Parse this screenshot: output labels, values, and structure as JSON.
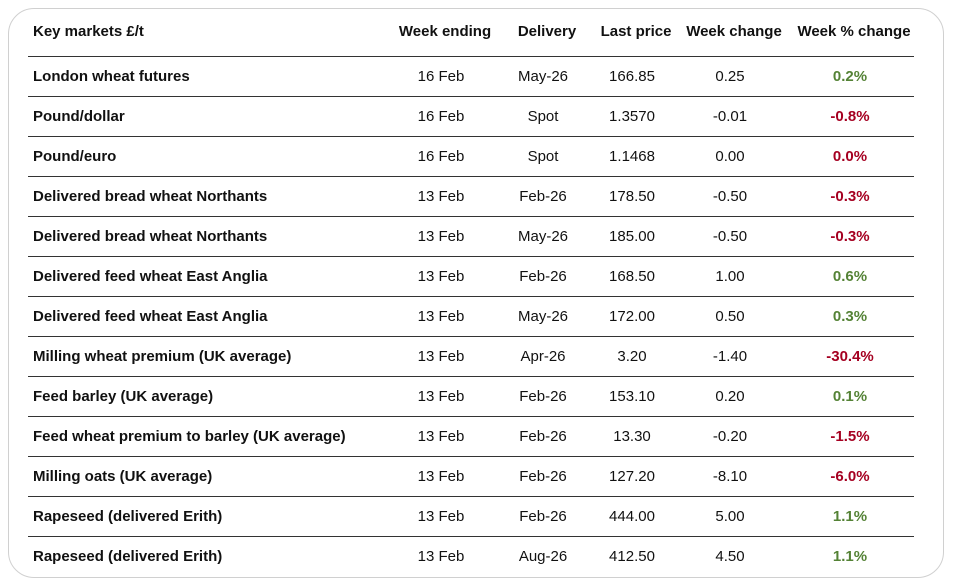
{
  "table": {
    "header": [
      "Key markets £/t",
      "Week ending",
      "Delivery",
      "Last price",
      "Week change",
      "Week % change"
    ],
    "rows": [
      {
        "cells": [
          "London wheat futures",
          "16 Feb",
          "May-26",
          "166.85",
          "0.25",
          "0.2%"
        ],
        "pct_color": "#548235"
      },
      {
        "cells": [
          "Pound/dollar",
          "16 Feb",
          "Spot",
          "1.3570",
          "-0.01",
          "-0.8%"
        ],
        "pct_color": "#a50021"
      },
      {
        "cells": [
          "Pound/euro",
          "16 Feb",
          "Spot",
          "1.1468",
          "0.00",
          "0.0%"
        ],
        "pct_color": "#a50021"
      },
      {
        "cells": [
          "Delivered bread wheat Northants",
          "13 Feb",
          "Feb-26",
          "178.50",
          "-0.50",
          "-0.3%"
        ],
        "pct_color": "#a50021"
      },
      {
        "cells": [
          "Delivered bread wheat Northants",
          "13 Feb",
          "May-26",
          "185.00",
          "-0.50",
          "-0.3%"
        ],
        "pct_color": "#a50021"
      },
      {
        "cells": [
          "Delivered feed wheat East Anglia",
          "13 Feb",
          "Feb-26",
          "168.50",
          "1.00",
          "0.6%"
        ],
        "pct_color": "#548235"
      },
      {
        "cells": [
          "Delivered feed wheat East Anglia",
          "13 Feb",
          "May-26",
          "172.00",
          "0.50",
          "0.3%"
        ],
        "pct_color": "#548235"
      },
      {
        "cells": [
          "Milling wheat premium (UK average)",
          "13 Feb",
          "Apr-26",
          "3.20",
          "-1.40",
          "-30.4%"
        ],
        "pct_color": "#a50021"
      },
      {
        "cells": [
          "Feed barley (UK average)",
          "13 Feb",
          "Feb-26",
          "153.10",
          "0.20",
          "0.1%"
        ],
        "pct_color": "#548235"
      },
      {
        "cells": [
          "Feed wheat premium to barley (UK average)",
          "13 Feb",
          "Feb-26",
          "13.30",
          "-0.20",
          "-1.5%"
        ],
        "pct_color": "#a50021"
      },
      {
        "cells": [
          "Milling oats (UK average)",
          "13 Feb",
          "Feb-26",
          "127.20",
          "-8.10",
          "-6.0%"
        ],
        "pct_color": "#a50021"
      },
      {
        "cells": [
          "Rapeseed (delivered Erith)",
          "13 Feb",
          "Feb-26",
          "444.00",
          "5.00",
          "1.1%"
        ],
        "pct_color": "#548235"
      },
      {
        "cells": [
          "Rapeseed (delivered Erith)",
          "13 Feb",
          "Aug-26",
          "412.50",
          "4.50",
          "1.1%"
        ],
        "pct_color": "#548235"
      }
    ]
  }
}
